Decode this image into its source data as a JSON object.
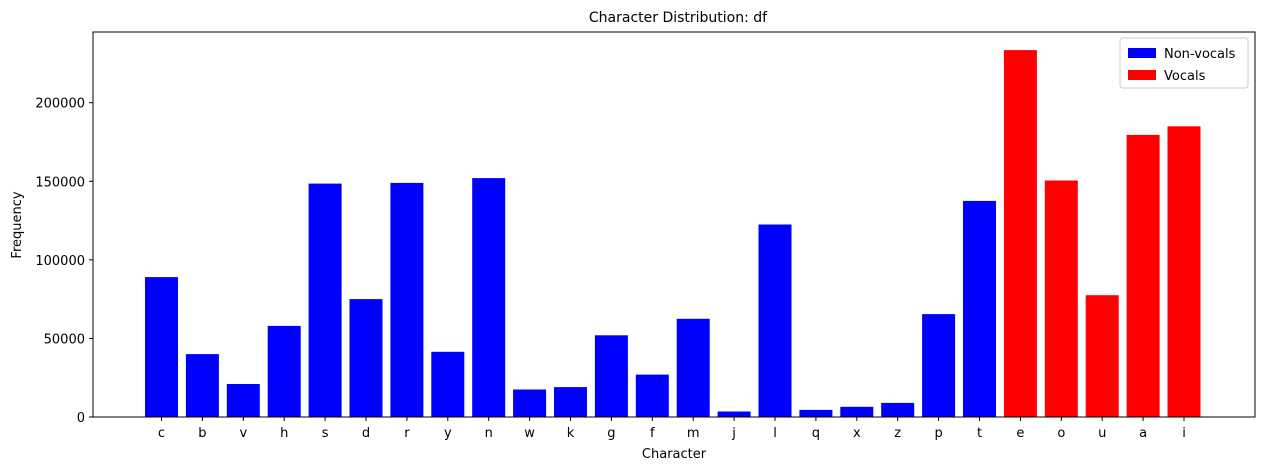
{
  "chart_data": {
    "type": "bar",
    "title": "Character Distribution: df",
    "xlabel": "Character",
    "ylabel": "Frequency",
    "categories": [
      "c",
      "b",
      "v",
      "h",
      "s",
      "d",
      "r",
      "y",
      "n",
      "w",
      "k",
      "g",
      "f",
      "m",
      "j",
      "l",
      "q",
      "x",
      "z",
      "p",
      "t",
      "e",
      "o",
      "u",
      "a",
      "i"
    ],
    "values": [
      89000,
      40000,
      21000,
      58000,
      148500,
      75000,
      149000,
      41500,
      152000,
      17500,
      19000,
      52000,
      27000,
      62500,
      3500,
      122500,
      4500,
      6500,
      9000,
      65500,
      137500,
      233500,
      150500,
      77500,
      179500,
      185000
    ],
    "series": [
      {
        "name": "Non-vocals",
        "color": "#0000ff",
        "categories": [
          "c",
          "b",
          "v",
          "h",
          "s",
          "d",
          "r",
          "y",
          "n",
          "w",
          "k",
          "g",
          "f",
          "m",
          "j",
          "l",
          "q",
          "x",
          "z",
          "p",
          "t"
        ]
      },
      {
        "name": "Vocals",
        "color": "#ff0000",
        "categories": [
          "e",
          "o",
          "u",
          "a",
          "i"
        ]
      }
    ],
    "ylim": [
      0,
      245000
    ],
    "yticks": [
      0,
      50000,
      100000,
      150000,
      200000
    ],
    "legend_position": "top-right",
    "grid": false
  }
}
